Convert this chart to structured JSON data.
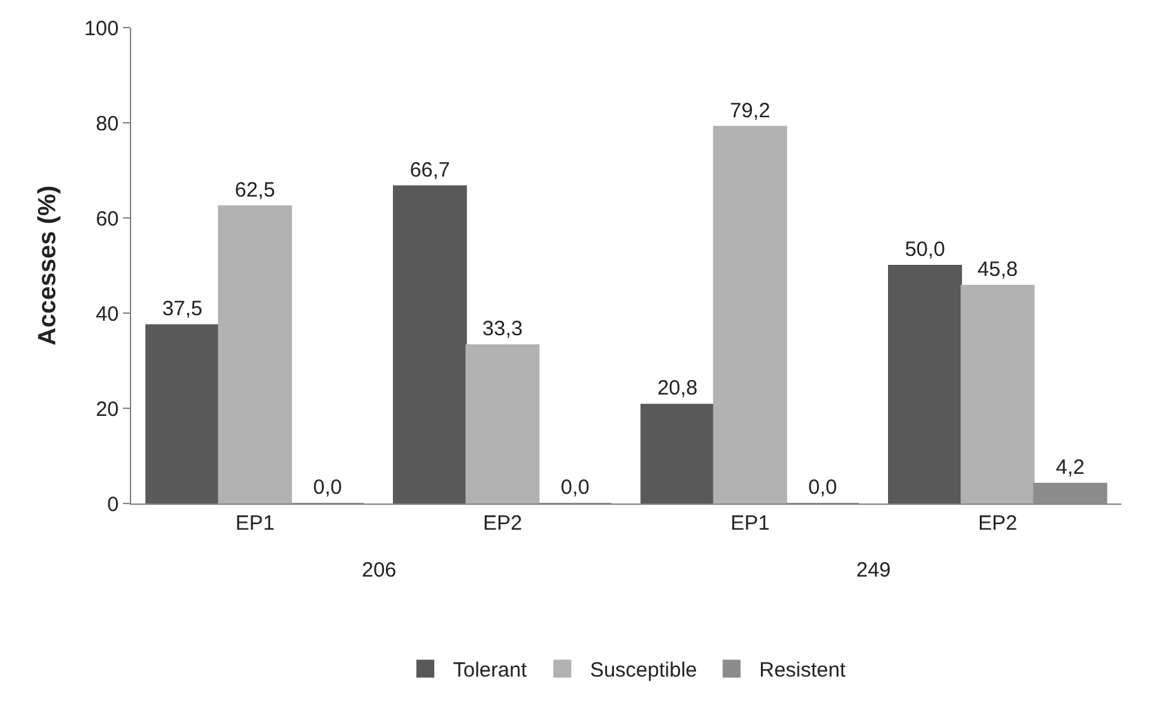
{
  "chart_data": {
    "type": "bar",
    "ylabel": "Accesses (%)",
    "categories": [
      "EP1",
      "EP2",
      "EP1",
      "EP2"
    ],
    "annotations": [
      "206",
      "249"
    ],
    "series": [
      {
        "name": "Tolerant",
        "color": "#595959",
        "values": [
          37.5,
          66.7,
          20.8,
          50.0
        ],
        "value_labels": [
          "37,5",
          "66,7",
          "20,8",
          "50,0"
        ]
      },
      {
        "name": "Susceptible",
        "color": "#b2b2b2",
        "values": [
          62.5,
          33.3,
          79.2,
          45.8
        ],
        "value_labels": [
          "62,5",
          "33,3",
          "79,2",
          "45,8"
        ]
      },
      {
        "name": "Resistent",
        "color": "#8c8c8c",
        "values": [
          0.0,
          0.0,
          0.0,
          4.2
        ],
        "value_labels": [
          "0,0",
          "0,0",
          "0,0",
          "4,2"
        ]
      }
    ],
    "ylim": [
      0,
      100
    ],
    "yticks": [
      0,
      20,
      40,
      60,
      80,
      100
    ],
    "grid": false,
    "legend": "bottom"
  }
}
